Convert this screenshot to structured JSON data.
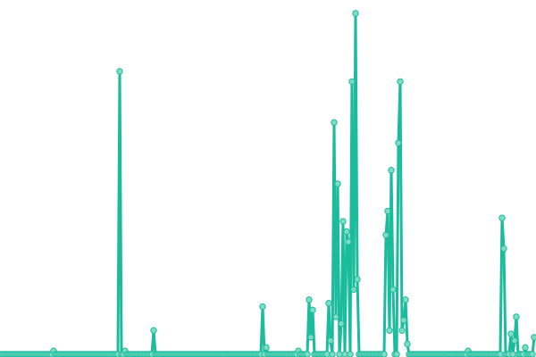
{
  "chart_data": {
    "type": "line",
    "title": "",
    "xlabel": "",
    "ylabel": "",
    "axes_visible": false,
    "grid": false,
    "legend": "none",
    "markers": true,
    "xlim": [
      0,
      299
    ],
    "ylim": [
      0,
      100
    ],
    "colors": {
      "line": "#1abc9c",
      "marker_fill": "#7fdcc4",
      "marker_stroke": "#1abc9c"
    },
    "series": [
      {
        "values": [
          0,
          0,
          0,
          0,
          0,
          0,
          0,
          0,
          0,
          0,
          0,
          0,
          0,
          0,
          0,
          0,
          0,
          0,
          0,
          0,
          0,
          0,
          0,
          0,
          0,
          0,
          0,
          0,
          0,
          0,
          1,
          0,
          0,
          0,
          0,
          0,
          0,
          0,
          0,
          0,
          0,
          0,
          0,
          0,
          0,
          0,
          0,
          0,
          0,
          0,
          0,
          0,
          0,
          0,
          0,
          0,
          0,
          0,
          0,
          0,
          0,
          0,
          0,
          0,
          0,
          0,
          0,
          83,
          0,
          0,
          1,
          0,
          0,
          0,
          0,
          0,
          0,
          0,
          0,
          0,
          0,
          0,
          0,
          0,
          0,
          0,
          7,
          0,
          0,
          0,
          0,
          0,
          0,
          0,
          0,
          0,
          0,
          0,
          0,
          0,
          0,
          0,
          0,
          0,
          0,
          0,
          0,
          0,
          0,
          0,
          0,
          0,
          0,
          0,
          0,
          0,
          0,
          0,
          0,
          0,
          0,
          0,
          0,
          0,
          0,
          0,
          0,
          0,
          0,
          0,
          0,
          0,
          0,
          0,
          0,
          0,
          0,
          0,
          0,
          0,
          0,
          0,
          0,
          0,
          0,
          0,
          0,
          14,
          0,
          2,
          0,
          0,
          0,
          0,
          0,
          0,
          0,
          0,
          0,
          0,
          0,
          0,
          0,
          0,
          0,
          0,
          0,
          1,
          0,
          0,
          0,
          0,
          0,
          16,
          5,
          13,
          0,
          0,
          0,
          0,
          0,
          0,
          0,
          0,
          15,
          4,
          0,
          68,
          11,
          50,
          0,
          9,
          39,
          0,
          36,
          33,
          0,
          80,
          19,
          100,
          22,
          0,
          0,
          0,
          0,
          0,
          0,
          0,
          0,
          0,
          0,
          0,
          0,
          0,
          0,
          0,
          35,
          42,
          7,
          54,
          19,
          0,
          0,
          62,
          80,
          7,
          10,
          16,
          3,
          0,
          0,
          0,
          0,
          0,
          0,
          0,
          0,
          0,
          0,
          0,
          0,
          0,
          0,
          0,
          0,
          0,
          0,
          0,
          0,
          0,
          0,
          0,
          0,
          0,
          0,
          0,
          0,
          0,
          0,
          0,
          0,
          0,
          1,
          0,
          0,
          0,
          0,
          0,
          0,
          0,
          0,
          0,
          0,
          0,
          0,
          0,
          0,
          0,
          0,
          0,
          0,
          40,
          31,
          0,
          0,
          0,
          6,
          0,
          4,
          11,
          0,
          0,
          0,
          0,
          2,
          0,
          0,
          0,
          0,
          5
        ]
      }
    ]
  }
}
